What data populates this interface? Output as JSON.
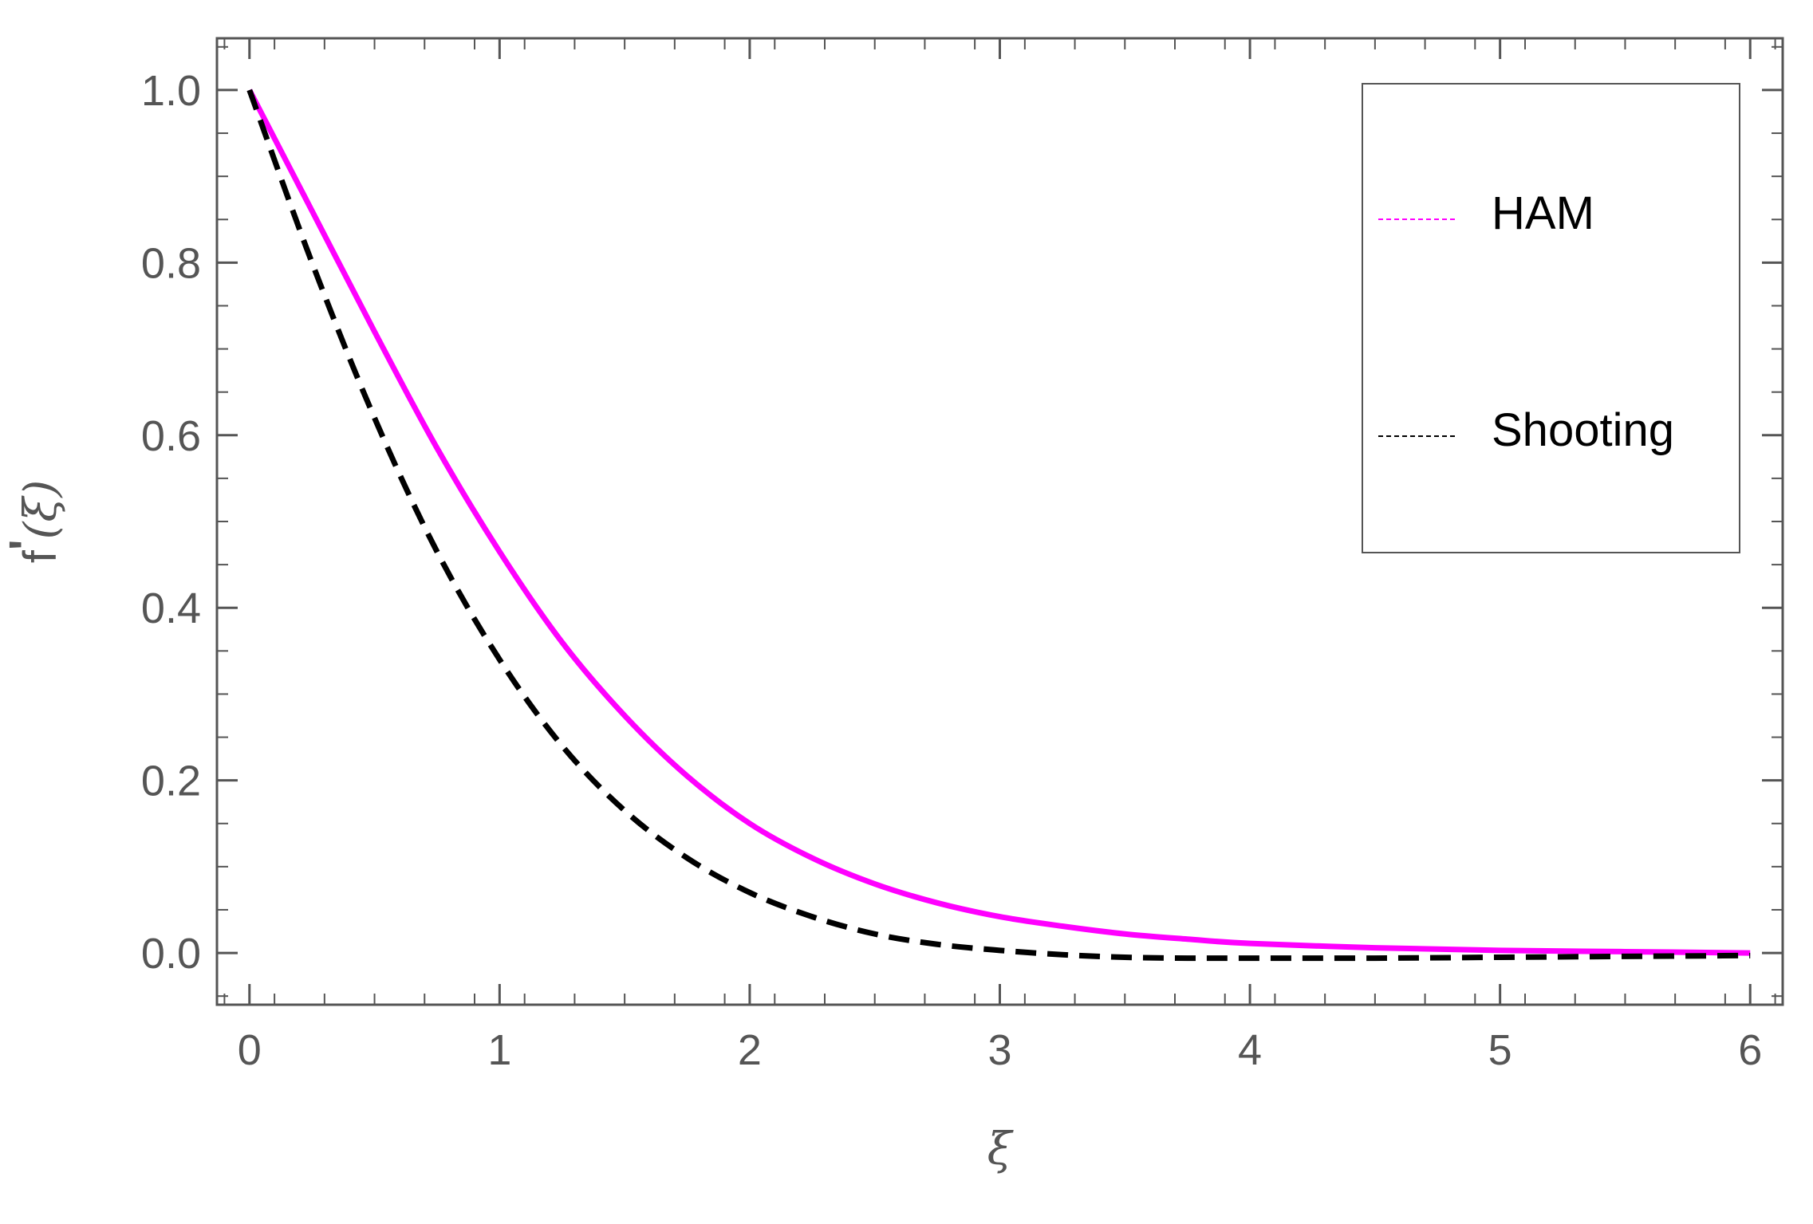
{
  "chart_data": {
    "type": "line",
    "title": "",
    "xlabel": "ξ",
    "ylabel_main": "f",
    "ylabel_prime": "'",
    "ylabel_arg": "(ξ)",
    "xlim": [
      -0.13,
      6.13
    ],
    "ylim": [
      -0.06,
      1.06
    ],
    "x_ticks": [
      0,
      1,
      2,
      3,
      4,
      5,
      6
    ],
    "y_ticks": [
      0.0,
      0.2,
      0.4,
      0.6,
      0.8,
      1.0
    ],
    "x_tick_labels": [
      "0",
      "1",
      "2",
      "3",
      "4",
      "5",
      "6"
    ],
    "y_tick_labels": [
      "0.0",
      "0.2",
      "0.4",
      "0.6",
      "0.8",
      "1.0"
    ],
    "grid": false,
    "legend_position": "top-right",
    "series": [
      {
        "name": "HAM",
        "color": "#ff00ff",
        "style": "solid",
        "x": [
          0,
          0.25,
          0.5,
          0.75,
          1.0,
          1.25,
          1.5,
          1.75,
          2.0,
          2.25,
          2.5,
          2.75,
          3.0,
          3.25,
          3.5,
          3.75,
          4.0,
          4.5,
          5.0,
          5.5,
          6.0
        ],
        "y": [
          1.0,
          0.86,
          0.72,
          0.585,
          0.465,
          0.36,
          0.275,
          0.205,
          0.15,
          0.11,
          0.08,
          0.058,
          0.042,
          0.031,
          0.022,
          0.016,
          0.011,
          0.006,
          0.003,
          0.0015,
          0.0
        ]
      },
      {
        "name": "Shooting",
        "color": "#000000",
        "style": "dashed",
        "x": [
          0,
          0.25,
          0.5,
          0.75,
          1.0,
          1.25,
          1.5,
          1.75,
          2.0,
          2.25,
          2.5,
          2.75,
          3.0,
          3.25,
          3.5,
          3.75,
          4.0,
          4.5,
          5.0,
          5.5,
          6.0
        ],
        "y": [
          1.0,
          0.8,
          0.62,
          0.465,
          0.34,
          0.24,
          0.165,
          0.11,
          0.07,
          0.042,
          0.022,
          0.01,
          0.003,
          -0.002,
          -0.005,
          -0.006,
          -0.006,
          -0.006,
          -0.005,
          -0.004,
          -0.003
        ]
      }
    ]
  }
}
